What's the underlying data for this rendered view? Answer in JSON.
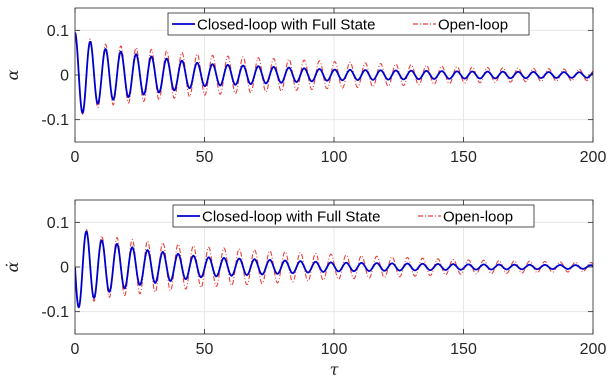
{
  "chart_data": [
    {
      "type": "line",
      "ylabel": "α",
      "xlabel": "",
      "xlim": [
        0,
        200
      ],
      "ylim": [
        -0.15,
        0.15
      ],
      "xticks": [
        0,
        50,
        100,
        150,
        200
      ],
      "xtick_labels": [
        "0",
        "50",
        "100",
        "150",
        "200"
      ],
      "yticks": [
        0.1,
        0,
        -0.1
      ],
      "ytick_labels": [
        "0.1",
        "0",
        "-0.1"
      ],
      "grid": true,
      "legend_position": "top-center",
      "series": [
        {
          "name": "Closed-loop with Full State",
          "color": "#0000cc",
          "style": "solid",
          "model": {
            "y0": 0.1,
            "amplitude": [
              [
                0,
                0.095
              ],
              [
                10,
                0.06
              ],
              [
                25,
                0.045
              ],
              [
                50,
                0.025
              ],
              [
                100,
                0.012
              ],
              [
                150,
                0.008
              ],
              [
                200,
                0.006
              ]
            ],
            "period": 5.9
          }
        },
        {
          "name": "Open-loop",
          "color": "#e8413c",
          "style": "dashdot",
          "model": {
            "y0": 0.1,
            "amplitude": [
              [
                0,
                0.095
              ],
              [
                10,
                0.07
              ],
              [
                25,
                0.06
              ],
              [
                50,
                0.045
              ],
              [
                100,
                0.03
              ],
              [
                150,
                0.018
              ],
              [
                200,
                0.012
              ]
            ],
            "period": 5.9
          }
        }
      ]
    },
    {
      "type": "line",
      "ylabel": "α̇",
      "xlabel": "τ",
      "xlim": [
        0,
        200
      ],
      "ylim": [
        -0.15,
        0.15
      ],
      "xticks": [
        0,
        50,
        100,
        150,
        200
      ],
      "xtick_labels": [
        "0",
        "50",
        "100",
        "150",
        "200"
      ],
      "yticks": [
        0.1,
        0,
        -0.1
      ],
      "ytick_labels": [
        "0.1",
        "0",
        "-0.1"
      ],
      "grid": true,
      "legend_position": "top-right",
      "series": [
        {
          "name": "Closed-loop with Full State",
          "color": "#0000cc",
          "style": "solid",
          "model": {
            "y0": 0.0,
            "amplitude": [
              [
                0,
                0.095
              ],
              [
                10,
                0.06
              ],
              [
                25,
                0.04
              ],
              [
                50,
                0.022
              ],
              [
                100,
                0.01
              ],
              [
                150,
                0.006
              ],
              [
                200,
                0.004
              ]
            ],
            "period": 5.9
          }
        },
        {
          "name": "Open-loop",
          "color": "#e8413c",
          "style": "dashdot",
          "model": {
            "y0": 0.0,
            "amplitude": [
              [
                0,
                0.095
              ],
              [
                10,
                0.07
              ],
              [
                25,
                0.06
              ],
              [
                50,
                0.045
              ],
              [
                100,
                0.028
              ],
              [
                150,
                0.016
              ],
              [
                200,
                0.01
              ]
            ],
            "period": 5.9
          }
        }
      ]
    }
  ]
}
